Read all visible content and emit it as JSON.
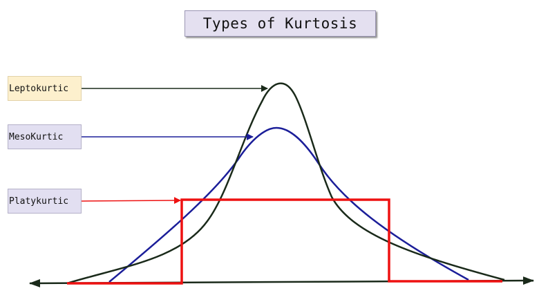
{
  "title": "Types of Kurtosis",
  "labels": {
    "leptokurtic": "Leptokurtic",
    "mesokurtic": "MesoKurtic",
    "platykurtic": "Platykurtic"
  },
  "colors": {
    "leptokurtic": "#1a2a1a",
    "mesokurtic": "#1b1e99",
    "platykurtic": "#ee1111",
    "axis": "#1a2a1a"
  }
}
